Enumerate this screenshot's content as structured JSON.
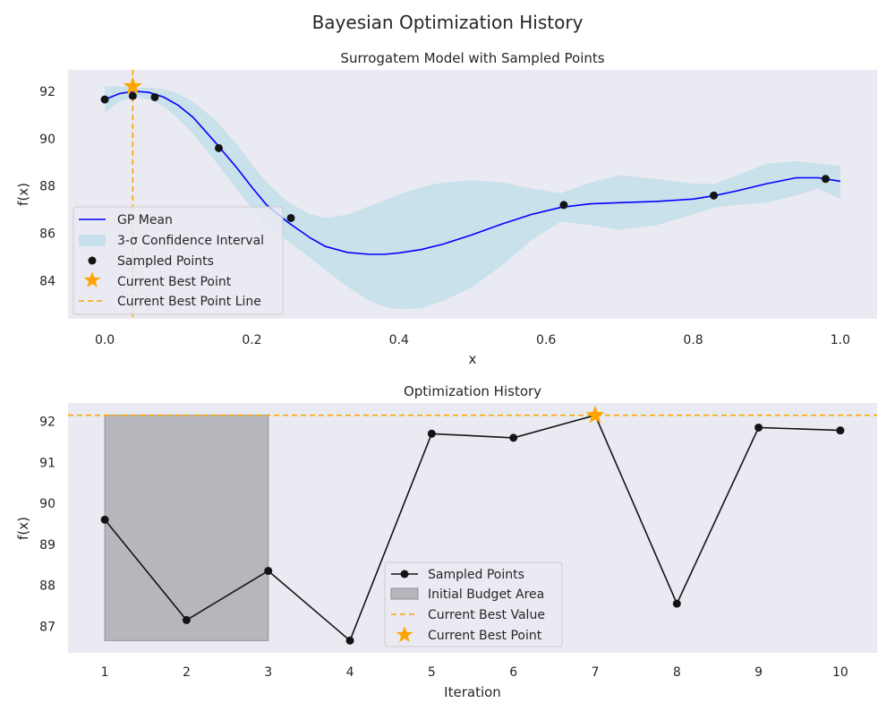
{
  "figure": {
    "title": "Bayesian Optimization History"
  },
  "chart_data": [
    {
      "type": "line",
      "title": "Surrogatem Model with Sampled Points",
      "xlabel": "x",
      "ylabel": "f(x)",
      "xlim": [
        -0.05,
        1.05
      ],
      "ylim": [
        82.4,
        92.9
      ],
      "xticks": [
        0.0,
        0.2,
        0.4,
        0.6,
        0.8,
        1.0
      ],
      "xtick_labels": [
        "0.0",
        "0.2",
        "0.4",
        "0.6",
        "0.8",
        "1.0"
      ],
      "yticks": [
        84,
        86,
        88,
        90,
        92
      ],
      "ytick_labels": [
        "84",
        "86",
        "88",
        "90",
        "92"
      ],
      "grid": false,
      "legend_position": "lower-left",
      "series": [
        {
          "name": "GP Mean",
          "color": "#0000ff",
          "x": [
            0.0,
            0.02,
            0.04,
            0.06,
            0.08,
            0.1,
            0.12,
            0.15,
            0.18,
            0.2,
            0.22,
            0.25,
            0.28,
            0.3,
            0.33,
            0.36,
            0.38,
            0.4,
            0.43,
            0.46,
            0.5,
            0.54,
            0.58,
            0.62,
            0.66,
            0.7,
            0.75,
            0.8,
            0.83,
            0.86,
            0.9,
            0.94,
            0.97,
            1.0
          ],
          "y": [
            91.65,
            91.9,
            92.0,
            91.95,
            91.75,
            91.4,
            90.9,
            89.85,
            88.75,
            87.95,
            87.2,
            86.45,
            85.8,
            85.45,
            85.2,
            85.12,
            85.12,
            85.18,
            85.32,
            85.55,
            85.95,
            86.4,
            86.8,
            87.1,
            87.25,
            87.3,
            87.35,
            87.45,
            87.6,
            87.8,
            88.1,
            88.35,
            88.35,
            88.2
          ]
        },
        {
          "name": "3-σ Confidence Interval",
          "color": "#add8e6",
          "x": [
            0.0,
            0.02,
            0.04,
            0.06,
            0.08,
            0.1,
            0.12,
            0.15,
            0.18,
            0.2,
            0.22,
            0.25,
            0.28,
            0.3,
            0.33,
            0.36,
            0.38,
            0.4,
            0.43,
            0.46,
            0.5,
            0.54,
            0.58,
            0.62,
            0.66,
            0.7,
            0.75,
            0.8,
            0.83,
            0.86,
            0.9,
            0.94,
            0.97,
            1.0
          ],
          "upper": [
            92.2,
            92.2,
            92.15,
            92.15,
            92.1,
            91.9,
            91.55,
            90.8,
            89.75,
            88.9,
            88.15,
            87.3,
            86.8,
            86.65,
            86.8,
            87.15,
            87.4,
            87.65,
            87.95,
            88.15,
            88.25,
            88.15,
            87.9,
            87.7,
            88.15,
            88.45,
            88.3,
            88.1,
            88.1,
            88.45,
            88.95,
            89.05,
            88.95,
            88.85
          ],
          "lower": [
            91.1,
            91.55,
            91.75,
            91.65,
            91.35,
            90.85,
            90.2,
            89.05,
            87.85,
            87.05,
            86.35,
            85.65,
            84.95,
            84.45,
            83.75,
            83.15,
            82.9,
            82.8,
            82.85,
            83.15,
            83.75,
            84.65,
            85.7,
            86.5,
            86.35,
            86.15,
            86.35,
            86.8,
            87.1,
            87.2,
            87.3,
            87.6,
            87.9,
            87.45
          ]
        },
        {
          "name": "Sampled Points",
          "color": "#141414",
          "x": [
            0.0,
            0.038,
            0.068,
            0.155,
            0.253,
            0.624,
            0.828,
            0.98
          ],
          "y": [
            91.65,
            91.8,
            91.75,
            89.6,
            86.65,
            87.2,
            87.6,
            88.3
          ]
        },
        {
          "name": "Current Best Point",
          "color": "#ffa500",
          "x": [
            0.038
          ],
          "y": [
            92.2
          ]
        },
        {
          "name": "Current Best Point Line",
          "color": "#ffa500",
          "x_value": 0.038
        }
      ]
    },
    {
      "type": "line",
      "title": "Optimization History",
      "xlabel": "Iteration",
      "ylabel": "f(x)",
      "xlim": [
        0.55,
        10.45
      ],
      "ylim": [
        86.35,
        92.45
      ],
      "xticks": [
        1,
        2,
        3,
        4,
        5,
        6,
        7,
        8,
        9,
        10
      ],
      "xtick_labels": [
        "1",
        "2",
        "3",
        "4",
        "5",
        "6",
        "7",
        "8",
        "9",
        "10"
      ],
      "yticks": [
        87,
        88,
        89,
        90,
        91,
        92
      ],
      "ytick_labels": [
        "87",
        "88",
        "89",
        "90",
        "91",
        "92"
      ],
      "grid": false,
      "legend_position": "lower-center",
      "series": [
        {
          "name": "Sampled Points",
          "color": "#141414",
          "x": [
            1,
            2,
            3,
            4,
            5,
            6,
            7,
            8,
            9,
            10
          ],
          "y": [
            89.6,
            87.15,
            88.35,
            86.65,
            91.7,
            91.6,
            92.15,
            87.55,
            91.85,
            91.78
          ]
        },
        {
          "name": "Initial Budget Area",
          "color": "#a9a9ae",
          "x_range": [
            1,
            3
          ],
          "y_range": [
            86.65,
            92.15
          ]
        },
        {
          "name": "Current Best Value",
          "color": "#ffa500",
          "y_value": 92.15
        },
        {
          "name": "Current Best Point",
          "color": "#ffa500",
          "x": [
            7
          ],
          "y": [
            92.15
          ]
        }
      ]
    }
  ]
}
